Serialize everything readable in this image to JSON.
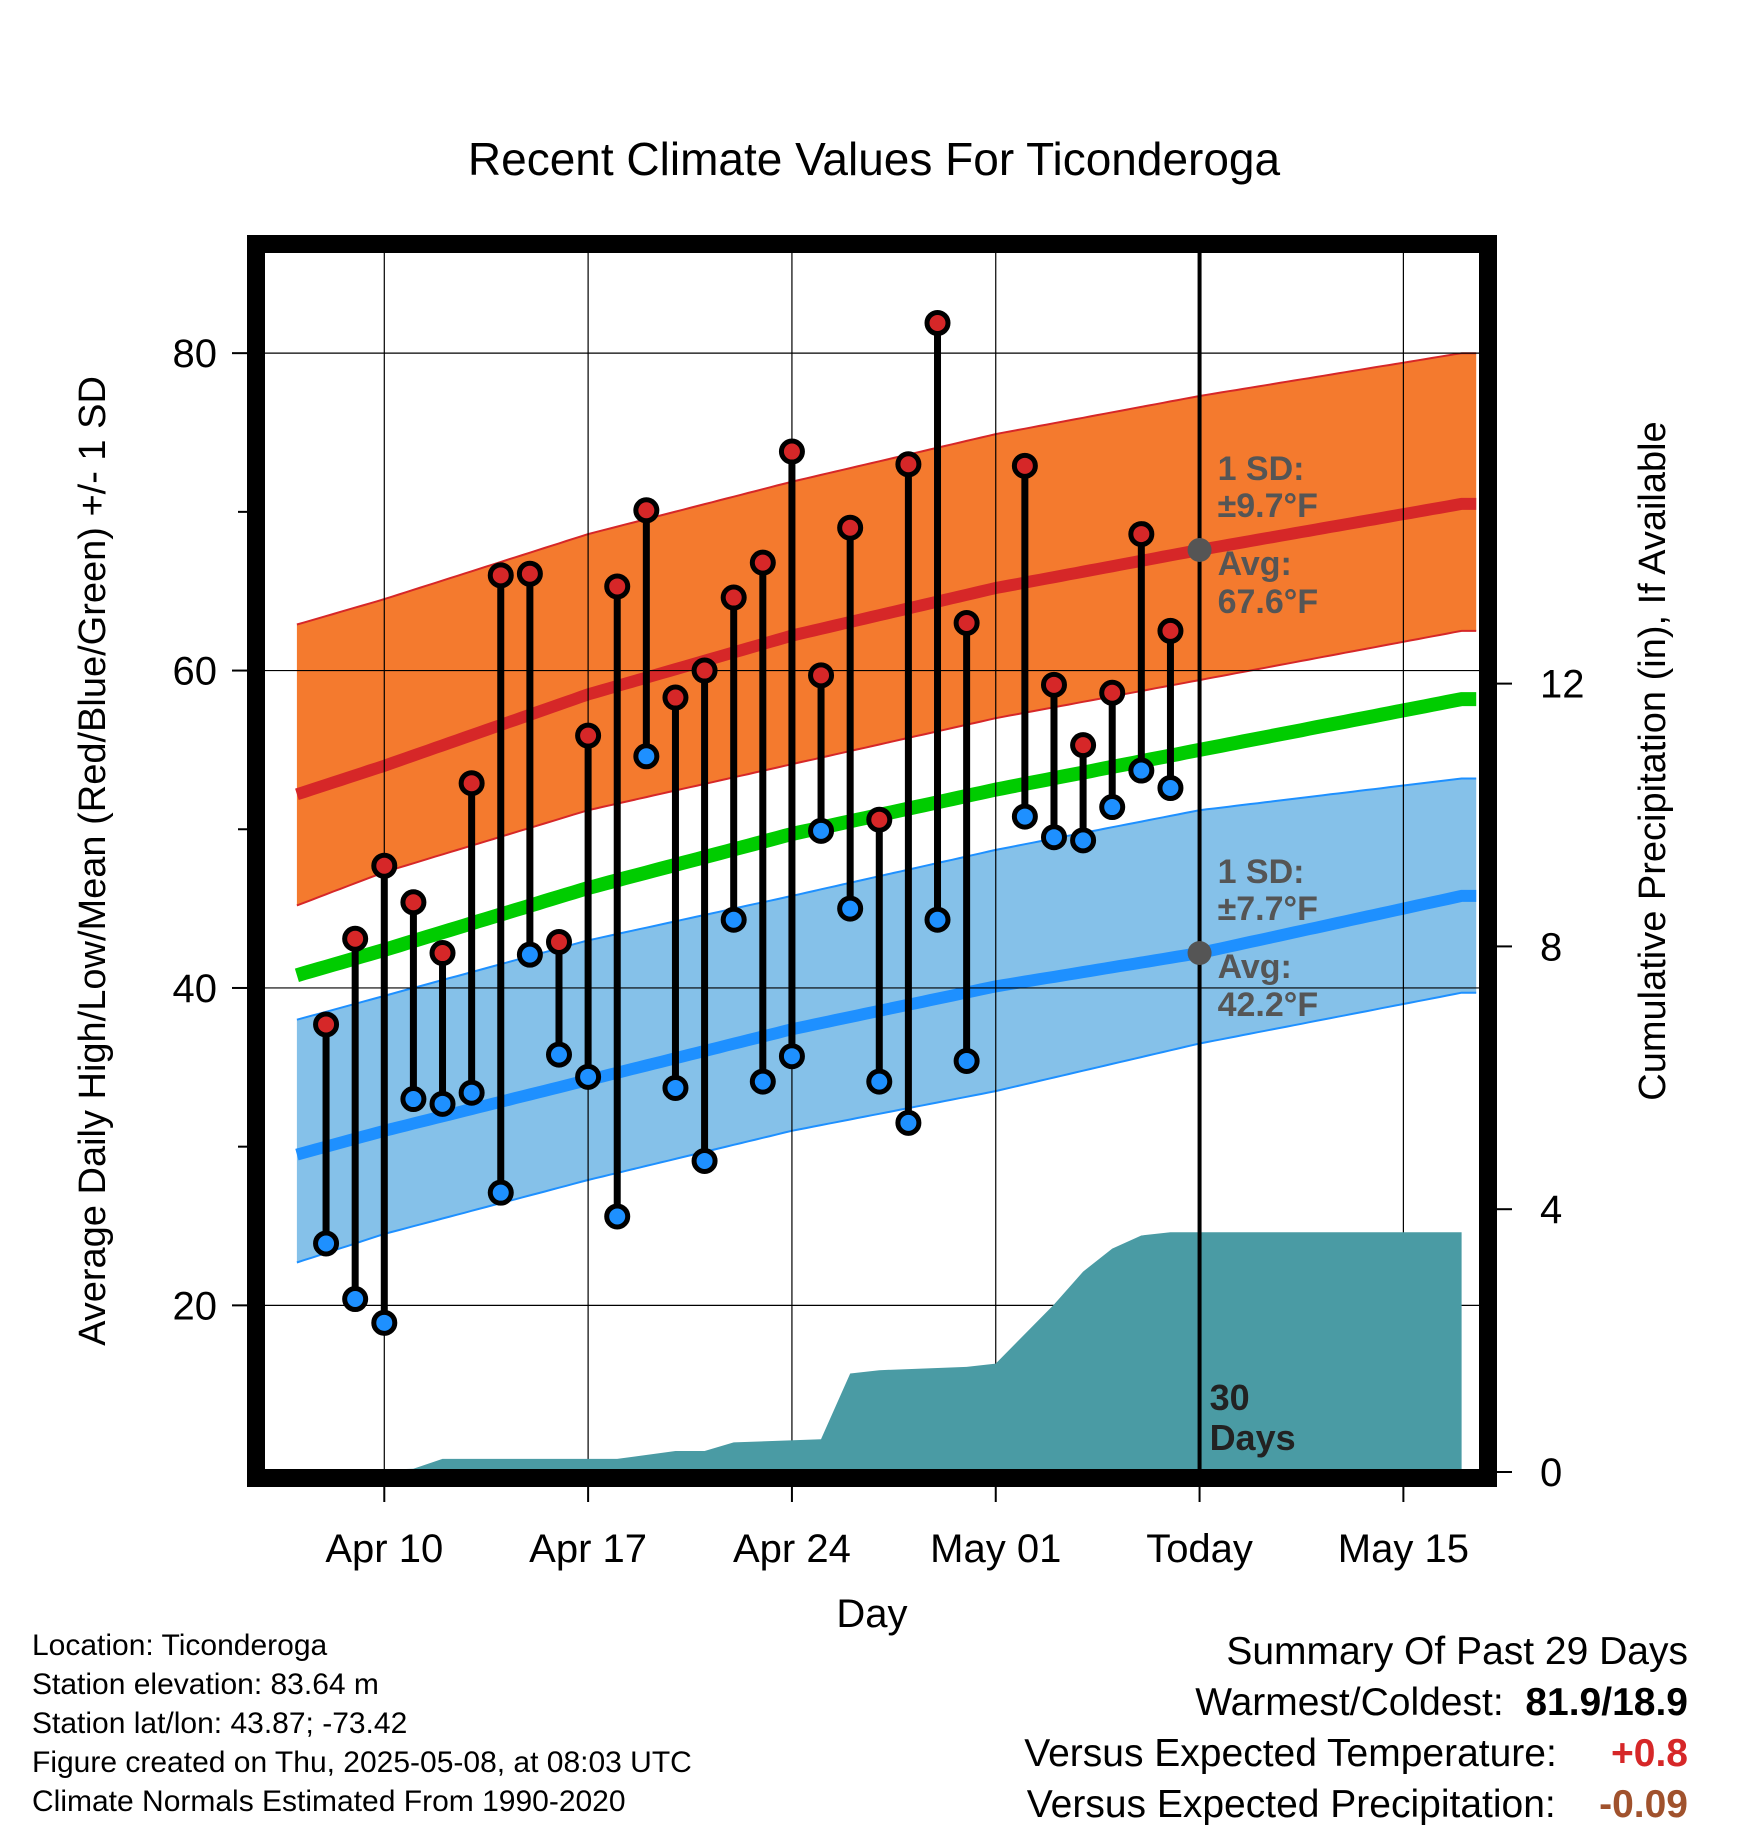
{
  "chart_data": {
    "type": "line",
    "title": "Recent Climate Values For Ticonderoga",
    "xlabel": "Day",
    "ylabel": "Average Daily High/Low/Mean (Red/Blue/Green) +/- 1 SD",
    "y2label": "Cumulative Precipitation (in), If Available",
    "x_ticks": [
      "Apr 10",
      "Apr 17",
      "Apr 24",
      "May 01",
      "Today",
      "May 15"
    ],
    "x_range_days": [
      -32.2,
      9.7
    ],
    "x_tick_days": [
      -28,
      -21,
      -14,
      -7,
      0,
      7
    ],
    "ylim": [
      9.5,
      86.5
    ],
    "y_ticks": [
      20,
      40,
      60,
      80
    ],
    "y2lim": [
      0,
      18.6
    ],
    "y2_ticks": [
      0,
      4,
      8,
      12
    ],
    "grid": true,
    "normals": {
      "x_days": [
        -31,
        -28,
        -21,
        -14,
        -7,
        0,
        9
      ],
      "high_avg": [
        52.2,
        54.0,
        58.5,
        62.2,
        65.2,
        67.6,
        70.5
      ],
      "high_sd_upper": [
        62.9,
        64.5,
        68.6,
        71.9,
        74.9,
        77.3,
        80.0
      ],
      "high_sd_lower": [
        45.2,
        47.3,
        51.2,
        54.1,
        57.0,
        59.4,
        62.5
      ],
      "low_avg": [
        29.5,
        31.0,
        34.2,
        37.4,
        40.1,
        42.2,
        45.8
      ],
      "low_sd_upper": [
        38.0,
        39.5,
        43.0,
        45.8,
        48.7,
        51.2,
        53.2
      ],
      "low_sd_lower": [
        22.7,
        24.5,
        27.9,
        31.0,
        33.5,
        36.5,
        39.7
      ],
      "mean": [
        40.8,
        42.4,
        46.3,
        49.7,
        52.5,
        55.0,
        58.2
      ]
    },
    "observations": {
      "x_days": [
        -30,
        -29,
        -28,
        -27,
        -26,
        -25,
        -24,
        -23,
        -22,
        -21,
        -20,
        -19,
        -18,
        -17,
        -16,
        -15,
        -14,
        -13,
        -12,
        -11,
        -10,
        -9,
        -8,
        -7,
        -6,
        -5,
        -4,
        -3,
        -2,
        -1
      ],
      "high": [
        37.7,
        43.1,
        47.7,
        45.4,
        42.2,
        52.9,
        66.0,
        66.1,
        42.9,
        55.9,
        65.3,
        70.1,
        58.3,
        60.0,
        64.6,
        66.8,
        73.8,
        59.7,
        69.0,
        50.6,
        73.0,
        81.9,
        63.0,
        null,
        72.9,
        59.1,
        55.3,
        58.6,
        68.6,
        62.5
      ],
      "low": [
        23.9,
        20.4,
        18.9,
        33.0,
        32.7,
        33.4,
        27.1,
        42.1,
        35.8,
        34.4,
        25.6,
        54.6,
        33.7,
        29.1,
        44.3,
        34.1,
        35.7,
        49.9,
        45.0,
        34.1,
        31.5,
        44.3,
        35.4,
        null,
        50.8,
        49.5,
        49.3,
        51.4,
        53.7,
        52.6
      ]
    },
    "precipitation_cumulative": {
      "x_days": [
        -30,
        -27,
        -26,
        -20,
        -18,
        -17,
        -16,
        -13,
        -12,
        -11,
        -8,
        -7,
        -6,
        -5,
        -4,
        -3,
        -2,
        -1,
        0,
        9
      ],
      "values": [
        0,
        0.05,
        0.2,
        0.2,
        0.32,
        0.32,
        0.45,
        0.5,
        1.5,
        1.55,
        1.6,
        1.65,
        2.1,
        2.55,
        3.05,
        3.4,
        3.6,
        3.65,
        3.65,
        3.65
      ]
    },
    "today_marker_label": "30\nDays",
    "high_annotation": {
      "sd_label": "1 SD:",
      "sd_value": "±9.7°F",
      "avg_label": "Avg:",
      "avg_value": "67.6°F"
    },
    "low_annotation": {
      "sd_label": "1 SD:",
      "sd_value": "±7.7°F",
      "avg_label": "Avg:",
      "avg_value": "42.2°F"
    },
    "colors": {
      "high_band": "#f47a2e",
      "high_line": "#d62728",
      "low_band": "#85c1e9",
      "low_line": "#1e90ff",
      "mean_line": "#00cc00",
      "precip": "#4a9ba4",
      "high_dot": "#d62728",
      "low_dot": "#1e90ff"
    }
  },
  "location_info": [
    "Location: Ticonderoga",
    "Station elevation: 83.64 m",
    "Station lat/lon: 43.87; -73.42",
    "Figure created on Thu, 2025-05-08, at 08:03 UTC",
    "Climate Normals Estimated From 1990-2020"
  ],
  "summary": {
    "heading": "Summary Of Past 29 Days",
    "warmest_coldest_label": "Warmest/Coldest:",
    "warmest_coldest_value": "81.9/18.9",
    "temp_label": "Versus Expected Temperature:",
    "temp_value": "+0.8",
    "temp_color": "#d62728",
    "precip_label": "Versus Expected Precipitation:",
    "precip_value": "-0.09",
    "precip_color": "#a0522d"
  }
}
